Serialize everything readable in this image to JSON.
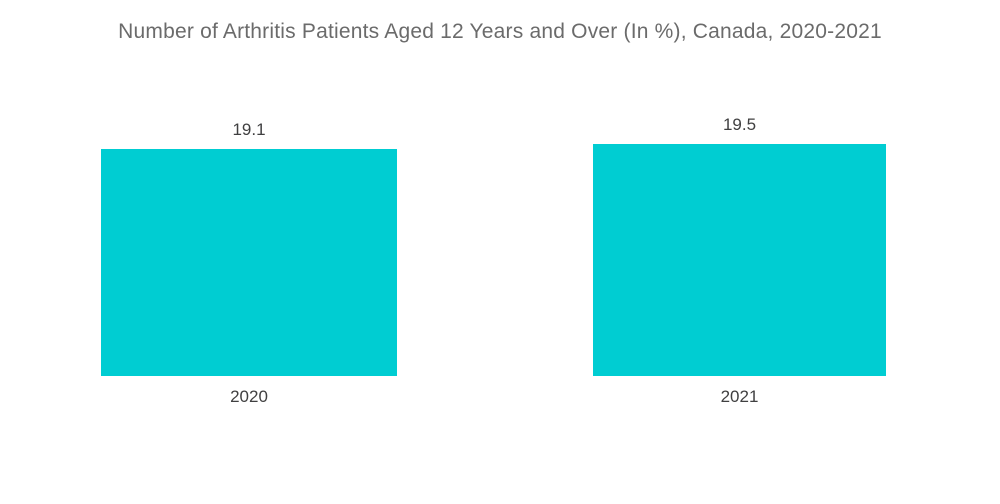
{
  "chart_data": {
    "type": "bar",
    "title": "Number of Arthritis Patients Aged 12 Years and Over (In %), Canada, 2020-2021",
    "categories": [
      "2020",
      "2021"
    ],
    "values": [
      19.1,
      19.5
    ],
    "value_labels": [
      "19.1",
      "19.5"
    ],
    "xlabel": "",
    "ylabel": "",
    "ylim": [
      0,
      19.5
    ],
    "grid": false,
    "axes_visible": false,
    "legend": "none",
    "data_labels_position": "above-bars",
    "bar_color": "#00cdd2",
    "title_color": "#6b6b6b",
    "label_color": "#404041",
    "background_color": "#ffffff"
  }
}
